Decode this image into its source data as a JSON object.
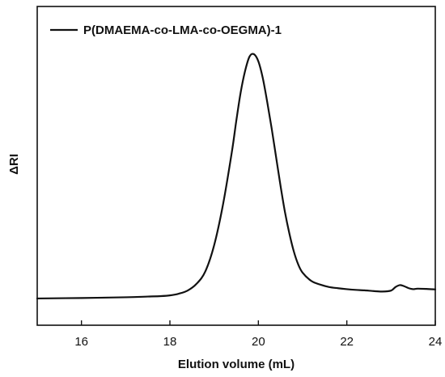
{
  "chart_data": {
    "type": "line",
    "xlabel": "Elution volume (mL)",
    "ylabel": "ΔRI",
    "xlim": [
      15,
      24
    ],
    "ylim": [
      0,
      1.15
    ],
    "x_ticks": [
      "16",
      "18",
      "20",
      "22",
      "24"
    ],
    "y_ticks_shown": false,
    "grid": false,
    "legend_position": "top-left",
    "series": [
      {
        "name": "P(DMAEMA-co-LMA-co-OEGMA)-1",
        "color": "#111111",
        "x": [
          15.0,
          16.0,
          17.0,
          17.5,
          17.8,
          18.0,
          18.2,
          18.4,
          18.6,
          18.8,
          19.0,
          19.2,
          19.4,
          19.5,
          19.6,
          19.7,
          19.8,
          19.9,
          20.0,
          20.1,
          20.2,
          20.3,
          20.4,
          20.5,
          20.6,
          20.7,
          20.8,
          20.9,
          21.0,
          21.2,
          21.4,
          21.6,
          21.8,
          22.0,
          22.2,
          22.4,
          22.6,
          22.8,
          23.0,
          23.1,
          23.2,
          23.3,
          23.4,
          23.5,
          23.6,
          23.8,
          24.0
        ],
        "y": [
          0.007,
          0.009,
          0.012,
          0.015,
          0.017,
          0.02,
          0.027,
          0.04,
          0.068,
          0.12,
          0.23,
          0.4,
          0.62,
          0.75,
          0.87,
          0.96,
          1.02,
          1.03,
          1.0,
          0.93,
          0.83,
          0.72,
          0.6,
          0.48,
          0.37,
          0.28,
          0.205,
          0.15,
          0.115,
          0.08,
          0.065,
          0.055,
          0.05,
          0.046,
          0.043,
          0.041,
          0.038,
          0.036,
          0.04,
          0.055,
          0.063,
          0.058,
          0.05,
          0.046,
          0.048,
          0.047,
          0.045
        ]
      }
    ]
  }
}
